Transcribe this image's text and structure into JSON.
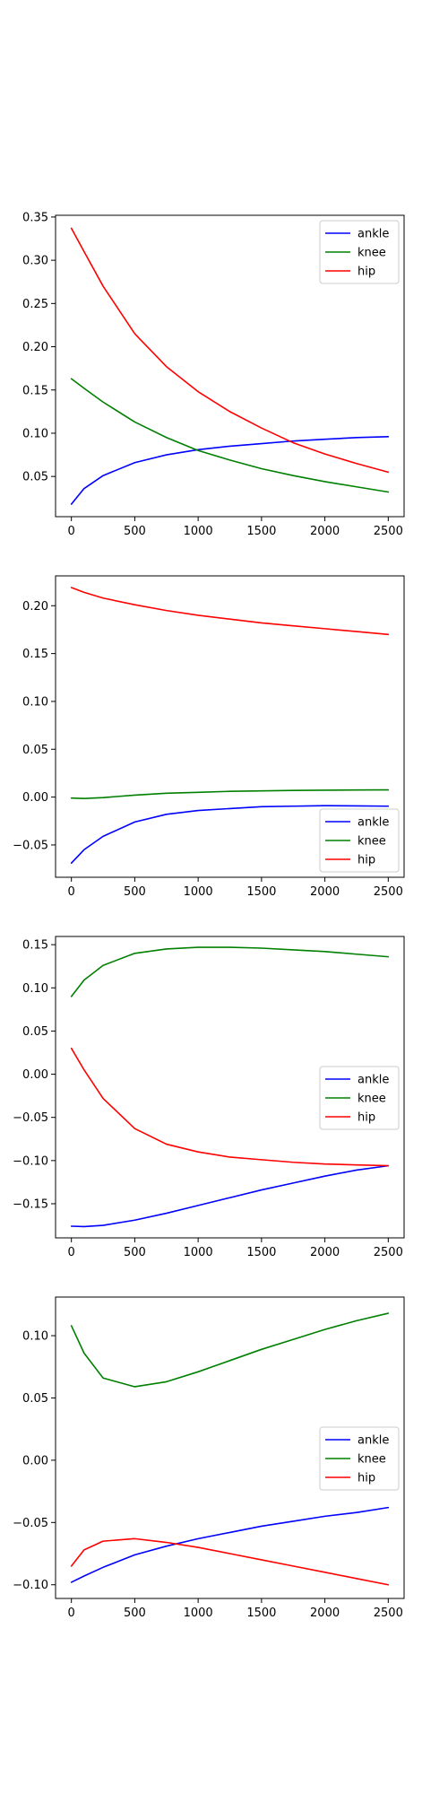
{
  "chart_data": [
    {
      "type": "line",
      "x": [
        0,
        100,
        250,
        500,
        750,
        1000,
        1250,
        1500,
        1750,
        2000,
        2250,
        2500
      ],
      "xlim": [
        -125,
        2625
      ],
      "ylim": [
        0.0035,
        0.352
      ],
      "xticks": [
        0,
        500,
        1000,
        1500,
        2000,
        2500
      ],
      "yticks": [
        0.05,
        0.1,
        0.15,
        0.2,
        0.25,
        0.3,
        0.35
      ],
      "ytick_labels": [
        "0.05",
        "0.10",
        "0.15",
        "0.20",
        "0.25",
        "0.30",
        "0.35"
      ],
      "legend_position": "upper right",
      "grid": false,
      "series": [
        {
          "name": "ankle",
          "color": "#0000ff",
          "values": [
            0.018,
            0.036,
            0.051,
            0.066,
            0.075,
            0.081,
            0.085,
            0.088,
            0.091,
            0.093,
            0.095,
            0.096
          ]
        },
        {
          "name": "knee",
          "color": "#008000",
          "values": [
            0.163,
            0.152,
            0.136,
            0.113,
            0.095,
            0.08,
            0.069,
            0.059,
            0.051,
            0.044,
            0.038,
            0.032
          ]
        },
        {
          "name": "hip",
          "color": "#ff0000",
          "values": [
            0.337,
            0.31,
            0.27,
            0.215,
            0.177,
            0.148,
            0.125,
            0.106,
            0.089,
            0.076,
            0.065,
            0.055
          ]
        }
      ]
    },
    {
      "type": "line",
      "x": [
        0,
        100,
        250,
        500,
        750,
        1000,
        1250,
        1500,
        1750,
        2000,
        2250,
        2500
      ],
      "xlim": [
        -125,
        2625
      ],
      "ylim": [
        -0.0838,
        0.2312
      ],
      "xticks": [
        0,
        500,
        1000,
        1500,
        2000,
        2500
      ],
      "yticks": [
        -0.05,
        0.0,
        0.05,
        0.1,
        0.15,
        0.2
      ],
      "ytick_labels": [
        "−0.05",
        "0.00",
        "0.05",
        "0.10",
        "0.15",
        "0.20"
      ],
      "legend_position": "lower right",
      "grid": false,
      "series": [
        {
          "name": "ankle",
          "color": "#0000ff",
          "values": [
            -0.069,
            -0.055,
            -0.041,
            -0.026,
            -0.018,
            -0.014,
            -0.012,
            -0.01,
            -0.0095,
            -0.009,
            -0.0092,
            -0.0095
          ]
        },
        {
          "name": "knee",
          "color": "#008000",
          "values": [
            -0.001,
            -0.0015,
            -0.0005,
            0.002,
            0.004,
            0.005,
            0.006,
            0.0065,
            0.007,
            0.0072,
            0.0074,
            0.0075
          ]
        },
        {
          "name": "hip",
          "color": "#ff0000",
          "values": [
            0.219,
            0.214,
            0.208,
            0.201,
            0.195,
            0.19,
            0.186,
            0.182,
            0.179,
            0.176,
            0.173,
            0.17
          ]
        }
      ]
    },
    {
      "type": "line",
      "x": [
        0,
        100,
        250,
        500,
        750,
        1000,
        1250,
        1500,
        1750,
        2000,
        2250,
        2500
      ],
      "xlim": [
        -125,
        2625
      ],
      "ylim": [
        -0.1895,
        0.1595
      ],
      "xticks": [
        0,
        500,
        1000,
        1500,
        2000,
        2500
      ],
      "yticks": [
        -0.15,
        -0.1,
        -0.05,
        0.0,
        0.05,
        0.1,
        0.15
      ],
      "ytick_labels": [
        "−0.15",
        "−0.10",
        "−0.05",
        "0.00",
        "0.05",
        "0.10",
        "0.15"
      ],
      "legend_position": "center right",
      "grid": false,
      "series": [
        {
          "name": "ankle",
          "color": "#0000ff",
          "values": [
            -0.176,
            -0.1765,
            -0.175,
            -0.169,
            -0.161,
            -0.152,
            -0.143,
            -0.134,
            -0.126,
            -0.118,
            -0.111,
            -0.106
          ]
        },
        {
          "name": "knee",
          "color": "#008000",
          "values": [
            0.09,
            0.109,
            0.126,
            0.14,
            0.145,
            0.147,
            0.147,
            0.146,
            0.144,
            0.142,
            0.139,
            0.136
          ]
        },
        {
          "name": "hip",
          "color": "#ff0000",
          "values": [
            0.03,
            0.005,
            -0.028,
            -0.063,
            -0.081,
            -0.09,
            -0.096,
            -0.099,
            -0.102,
            -0.104,
            -0.105,
            -0.106
          ]
        }
      ]
    },
    {
      "type": "line",
      "x": [
        0,
        100,
        250,
        500,
        750,
        1000,
        1250,
        1500,
        1750,
        2000,
        2250,
        2500
      ],
      "xlim": [
        -125,
        2625
      ],
      "ylim": [
        -0.111,
        0.131
      ],
      "xticks": [
        0,
        500,
        1000,
        1500,
        2000,
        2500
      ],
      "yticks": [
        -0.1,
        -0.05,
        0.0,
        0.05,
        0.1
      ],
      "ytick_labels": [
        "−0.10",
        "−0.05",
        "0.00",
        "0.05",
        "0.10"
      ],
      "legend_position": "center right",
      "grid": false,
      "series": [
        {
          "name": "ankle",
          "color": "#0000ff",
          "values": [
            -0.098,
            -0.093,
            -0.086,
            -0.076,
            -0.069,
            -0.063,
            -0.058,
            -0.053,
            -0.049,
            -0.045,
            -0.042,
            -0.038
          ]
        },
        {
          "name": "knee",
          "color": "#008000",
          "values": [
            0.108,
            0.086,
            0.066,
            0.059,
            0.063,
            0.071,
            0.08,
            0.089,
            0.097,
            0.105,
            0.112,
            0.118
          ]
        },
        {
          "name": "hip",
          "color": "#ff0000",
          "values": [
            -0.085,
            -0.072,
            -0.065,
            -0.063,
            -0.066,
            -0.07,
            -0.075,
            -0.08,
            -0.085,
            -0.09,
            -0.095,
            -0.1
          ]
        }
      ]
    }
  ]
}
